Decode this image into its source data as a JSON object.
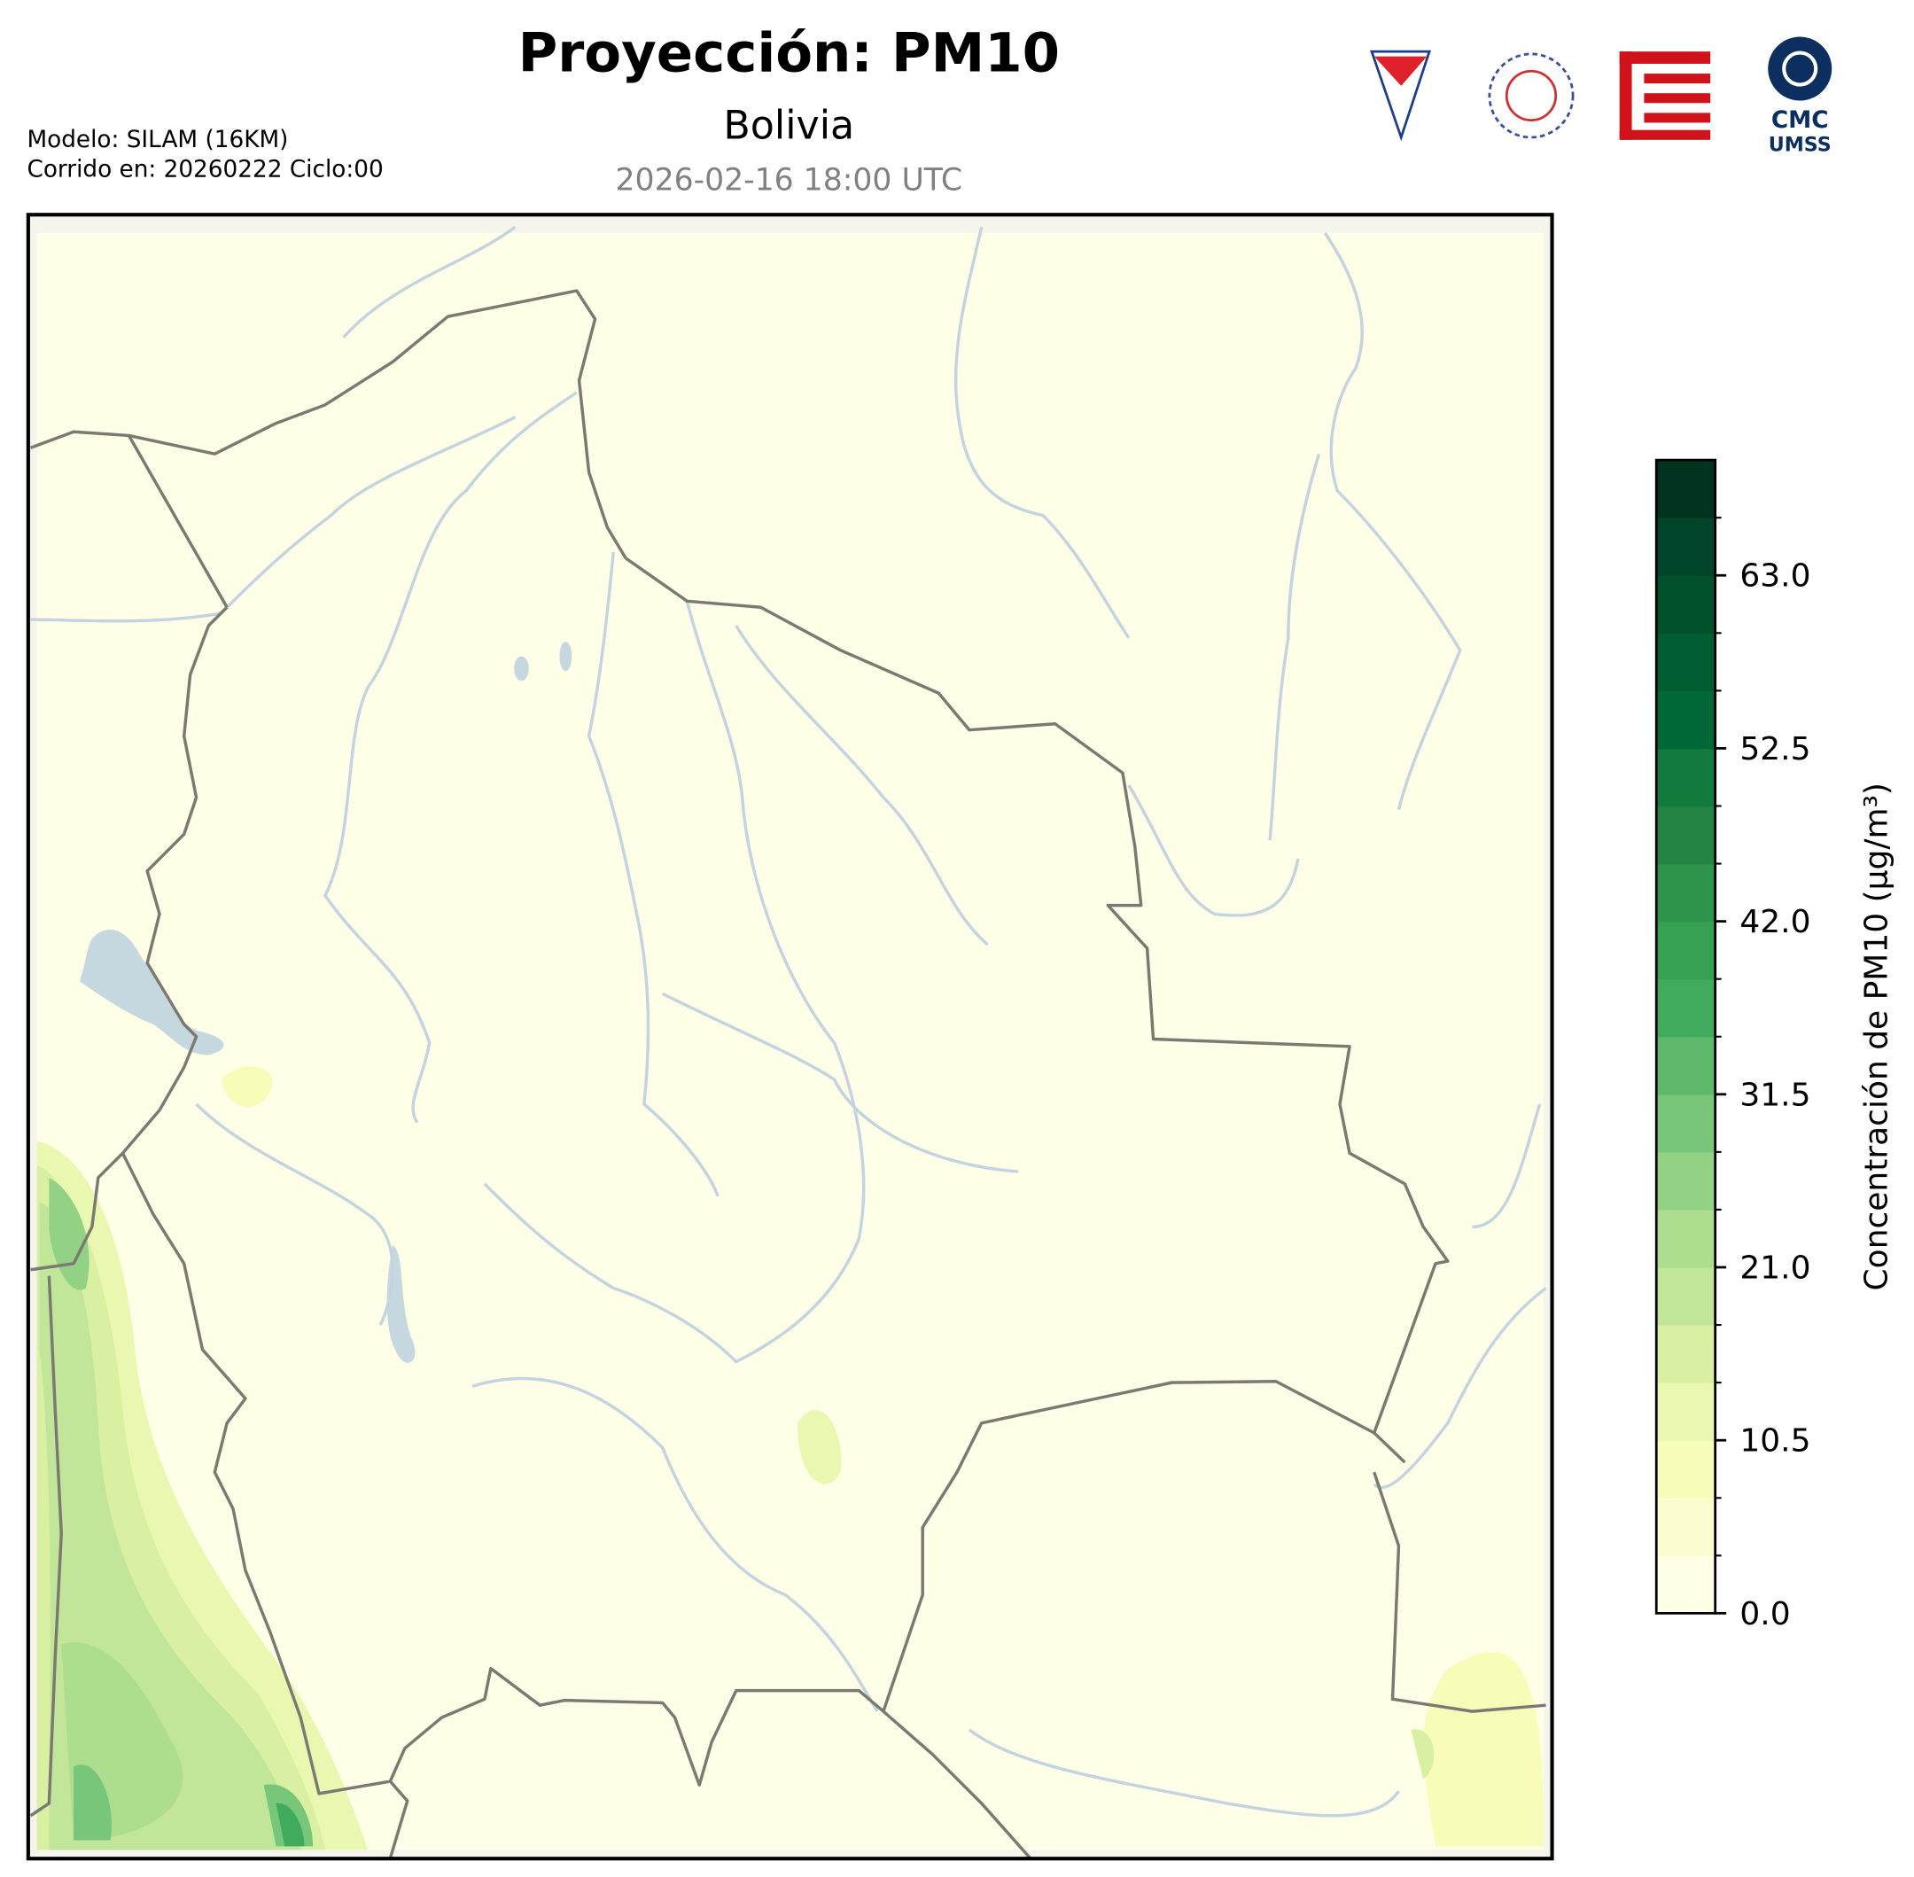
{
  "chart_data": {
    "type": "contour-map",
    "title": "Proyección: PM10",
    "subtitle": "Bolivia",
    "valid_time": "2026-02-16 18:00 UTC",
    "model": "Modelo: SILAM (16KM)",
    "run": "Corrido en: 20260222 Ciclo:00",
    "logo_text": [
      "CMC",
      "UMSS"
    ],
    "colorbar_label": "Concentración de PM10 (μg/m³)",
    "clim": [
      0,
      70
    ],
    "colors": [
      "#ffffe5",
      "#fbfdd0",
      "#f7fcb9",
      "#eaf7b0",
      "#d9f0a3",
      "#c2e699",
      "#addd8e",
      "#93d284",
      "#78c679",
      "#5fb96c",
      "#41ab5d",
      "#36a153",
      "#2e934b",
      "#238443",
      "#137a3d",
      "#006837",
      "#005d32",
      "#00512c",
      "#004529",
      "#00341e"
    ],
    "cticks": [
      {
        "value": 0,
        "label": "0.0"
      },
      {
        "value": 10.5,
        "label": "10.5"
      },
      {
        "value": 21,
        "label": "21.0"
      },
      {
        "value": 31.5,
        "label": "31.5"
      },
      {
        "value": 42,
        "label": "42.0"
      },
      {
        "value": 52.5,
        "label": "52.5"
      },
      {
        "value": 63,
        "label": "63.0"
      }
    ]
  }
}
